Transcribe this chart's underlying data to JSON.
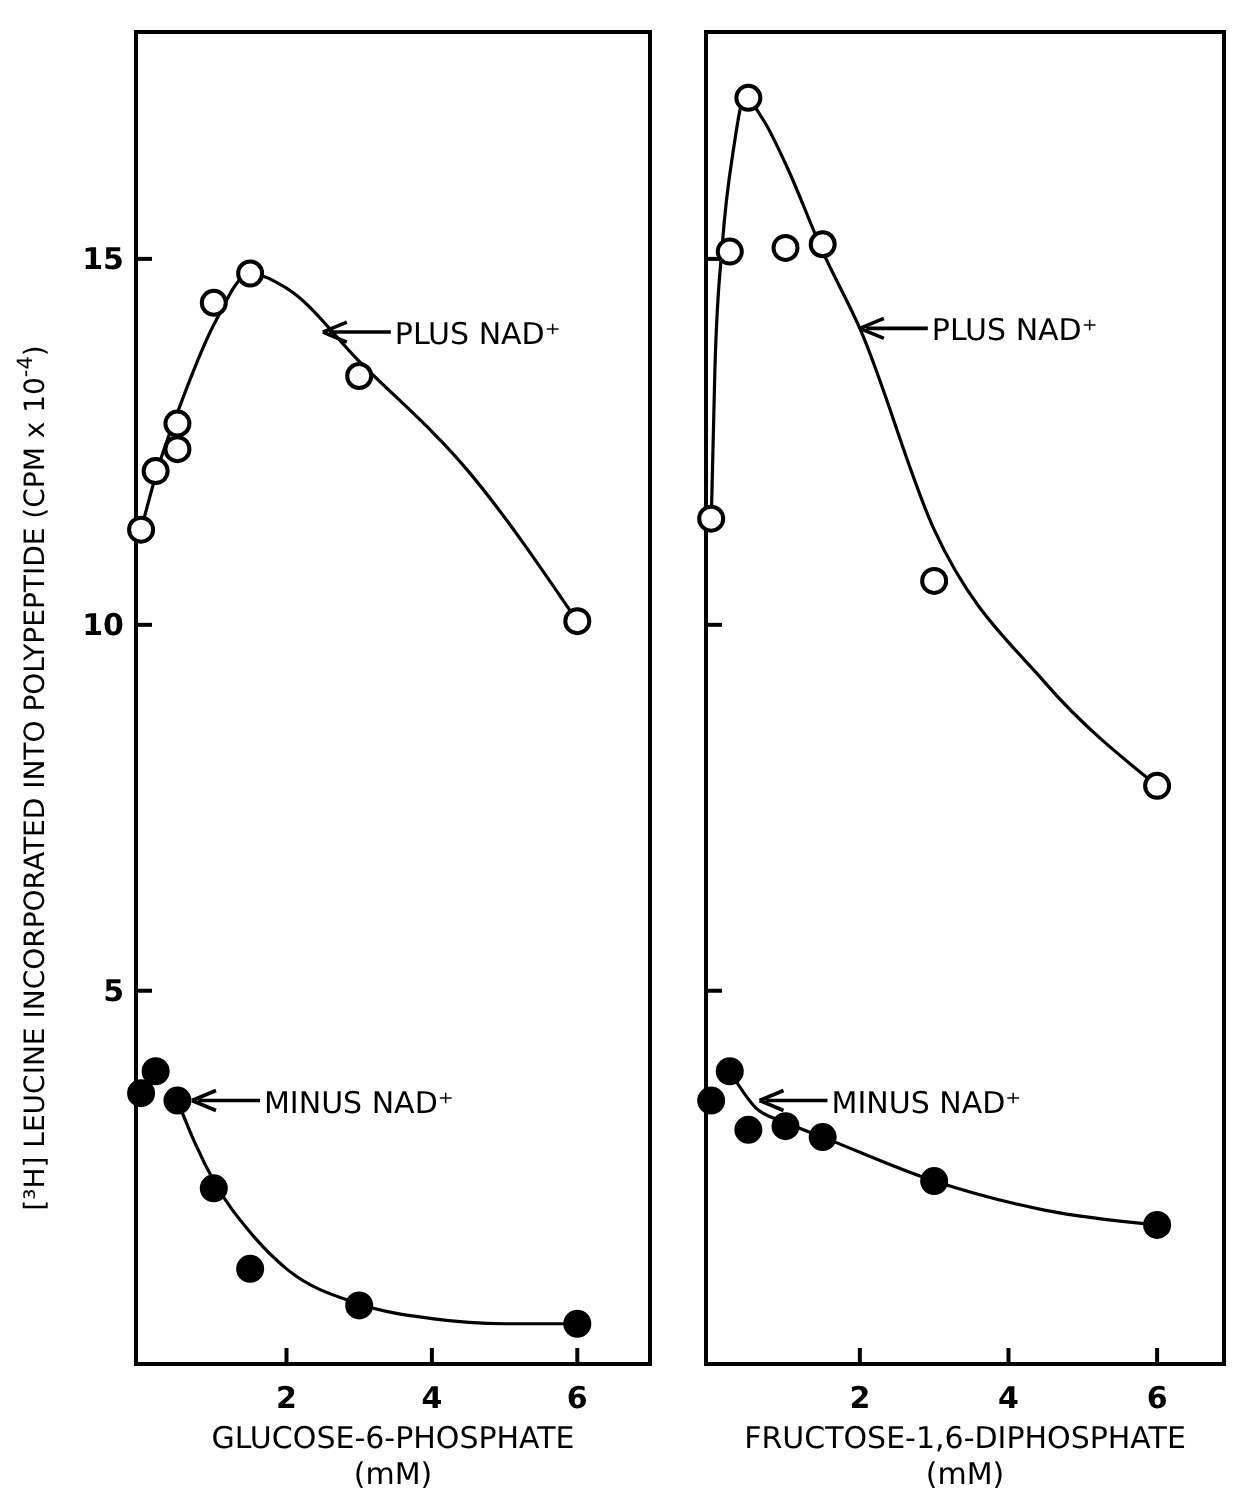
{
  "chart_data": [
    {
      "type": "scatter",
      "xlabel": "GLUCOSE-6-PHOSPHATE\n(mM)",
      "ylabel": "[³H] LEUCINE INCORPORATED INTO POLYPEPTIDE    (CPM x 10$^{-4}$)",
      "xlim": [
        -0.07,
        7.0
      ],
      "ylim": [
        -0.1,
        18.1
      ],
      "xticks": [
        2,
        4,
        6
      ],
      "yticks": [
        5,
        10,
        15
      ],
      "grid": false,
      "series": [
        {
          "marker": "circle",
          "color": "#ffffff",
          "x": [
            0,
            0.2,
            0.5,
            0.5,
            1,
            1.5,
            3,
            6
          ],
          "values": [
            11.3,
            12.1,
            12.75,
            12.4,
            14.4,
            14.8,
            13.4,
            10.05
          ]
        },
        {
          "marker": "circle",
          "color": "#000000",
          "x": [
            0,
            0.2,
            0.5,
            1,
            1.5,
            3,
            6
          ],
          "values": [
            3.6,
            3.9,
            3.5,
            2.3,
            1.2,
            0.7,
            0.45
          ]
        },
        {
          "type": "line",
          "marker": "none",
          "color": "#000000",
          "line_style": "solid",
          "x": [
            0,
            0.25,
            0.5,
            1,
            1.5,
            2,
            3,
            4.5,
            6
          ],
          "values": [
            11.3,
            12.2,
            12.9,
            14.1,
            14.8,
            14.6,
            13.6,
            12.1,
            10.05
          ]
        },
        {
          "type": "line",
          "marker": "none",
          "color": "#000000",
          "line_style": "solid",
          "x": [
            0.5,
            0.75,
            1,
            1.5,
            2,
            3,
            4,
            5,
            6
          ],
          "values": [
            3.5,
            2.9,
            2.4,
            1.7,
            1.2,
            0.72,
            0.52,
            0.45,
            0.45
          ]
        }
      ],
      "annotations": [
        {
          "text": "PLUS NAD⁺",
          "x": 2.5,
          "y": 14.0
        },
        {
          "text": "MINUS NAD⁺",
          "x": 0.7,
          "y": 3.5
        }
      ]
    },
    {
      "type": "scatter",
      "xlabel": "FRUCTOSE-1,6-DIPHOSPHATE\n(mM)",
      "xlim": [
        -0.07,
        6.9
      ],
      "ylim": [
        -0.1,
        18.1
      ],
      "xticks": [
        2,
        4,
        6
      ],
      "yticks": [
        {
          "value": 5,
          "label": null
        },
        {
          "value": 10,
          "label": null
        },
        {
          "value": 15,
          "label": null
        }
      ],
      "tick_labels": "x",
      "grid": false,
      "series": [
        {
          "marker": "circle",
          "color": "#ffffff",
          "x": [
            0,
            0.25,
            0.5,
            1,
            1.5,
            3,
            6
          ],
          "values": [
            11.45,
            15.1,
            17.2,
            15.15,
            15.2,
            10.6,
            7.8
          ]
        },
        {
          "marker": "circle",
          "color": "#000000",
          "x": [
            0,
            0.25,
            0.5,
            1,
            1.5,
            3,
            6
          ],
          "values": [
            3.5,
            3.9,
            3.1,
            3.15,
            3.0,
            2.4,
            1.8
          ]
        },
        {
          "type": "line",
          "marker": "none",
          "color": "#000000",
          "line_style": "solid",
          "x": [
            0,
            0.05,
            0.15,
            0.3,
            0.45,
            0.7,
            1,
            1.5,
            2,
            3,
            4.5,
            6
          ],
          "values": [
            11.4,
            13.5,
            15.2,
            16.5,
            17.2,
            16.9,
            16.3,
            15.1,
            14.05,
            11.3,
            9.2,
            7.8
          ]
        },
        {
          "type": "line",
          "marker": "none",
          "color": "#000000",
          "line_style": "solid",
          "x": [
            0.25,
            0.6,
            1,
            1.5,
            3,
            4.5,
            6
          ],
          "values": [
            3.9,
            3.4,
            3.2,
            3.0,
            2.4,
            2.0,
            1.8
          ]
        }
      ],
      "annotations": [
        {
          "text": "PLUS NAD⁺",
          "x": 2.0,
          "y": 14.05
        },
        {
          "text": "MINUS NAD⁺",
          "x": 0.65,
          "y": 3.5
        }
      ]
    }
  ]
}
